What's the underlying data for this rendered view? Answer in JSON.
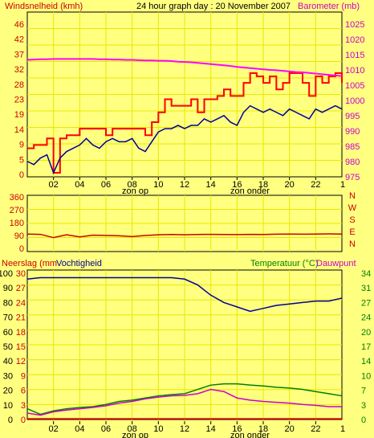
{
  "colors": {
    "background": "#ffff80",
    "axes": "#000000",
    "grid": "#e8e800",
    "wind_gust": "#ff0000",
    "wind_avg": "#000099",
    "barometer": "#ff00ff",
    "direction": "#cc0000",
    "humidity": "#000099",
    "rain": "#ff0000",
    "temperature": "#008000",
    "dewpoint": "#cc00cc",
    "label_red": "#cc0000",
    "label_magenta": "#cc00cc",
    "label_green": "#008000"
  },
  "header": {
    "title": "24 hour graph day : 20 November 2007"
  },
  "chart_data": [
    {
      "type": "line",
      "panel": "wind_barometer",
      "left_axis": {
        "label": "Windsnelheid (kmh)",
        "ticks": [
          "46",
          "42",
          "37",
          "32",
          "28",
          "23",
          "19",
          "14",
          "9",
          "5",
          "0"
        ],
        "ylim": [
          0,
          46
        ]
      },
      "right_axis": {
        "label": "Barometer (mb)",
        "ticks": [
          "1025",
          "1020",
          "1015",
          "1010",
          "1005",
          "1000",
          "995",
          "990",
          "985",
          "980",
          "975"
        ],
        "ylim": [
          975,
          1025
        ]
      },
      "x_ticks": [
        "02",
        "04",
        "06",
        "08",
        "10",
        "12",
        "14",
        "16",
        "18",
        "20",
        "22"
      ],
      "x_end_label": "1",
      "sun_labels": {
        "rise": "zon op",
        "set": "zon onder"
      },
      "x_hours": [
        0,
        0.5,
        1,
        1.5,
        2,
        2.5,
        3,
        3.5,
        4,
        4.5,
        5,
        5.5,
        6,
        6.5,
        7,
        7.5,
        8,
        8.5,
        9,
        9.5,
        10,
        10.5,
        11,
        11.5,
        12,
        12.5,
        13,
        13.5,
        14,
        14.5,
        15,
        15.5,
        16,
        16.5,
        17,
        17.5,
        18,
        18.5,
        19,
        19.5,
        20,
        20.5,
        21,
        21.5,
        22,
        22.5,
        23,
        23.5,
        24
      ],
      "series": [
        {
          "key": "gust",
          "axis": "left",
          "values": [
            8,
            9,
            9,
            11,
            0.5,
            11,
            12,
            12,
            14,
            14,
            14,
            14,
            12,
            14,
            14,
            14,
            14,
            14,
            12,
            16,
            19,
            23,
            21,
            21,
            21,
            23,
            19,
            23,
            23,
            24,
            26,
            24,
            24,
            28,
            31,
            30,
            28,
            30,
            26,
            28,
            31,
            31,
            28,
            24,
            30,
            28,
            30,
            31,
            28
          ]
        },
        {
          "key": "avg",
          "axis": "left",
          "values": [
            4,
            3,
            5,
            6,
            0.5,
            5,
            7,
            8,
            9,
            11,
            9,
            8,
            10,
            11,
            10,
            10,
            11,
            8,
            7,
            10,
            13,
            14,
            14,
            15,
            14,
            15,
            15,
            17,
            16,
            17,
            18,
            16,
            15,
            19,
            21,
            20,
            19,
            20,
            19,
            18,
            20,
            19,
            18,
            17,
            20,
            19,
            20,
            21,
            20
          ]
        },
        {
          "key": "barometer",
          "axis": "right",
          "values": [
            1013.3,
            1013.4,
            1013.5,
            1013.5,
            1013.6,
            1013.6,
            1013.6,
            1013.6,
            1013.6,
            1013.6,
            1013.6,
            1013.5,
            1013.5,
            1013.4,
            1013.4,
            1013.3,
            1013.3,
            1013.2,
            1013.1,
            1013.1,
            1013.0,
            1013.0,
            1012.9,
            1012.7,
            1012.6,
            1012.5,
            1012.3,
            1012.1,
            1011.9,
            1011.7,
            1011.5,
            1011.3,
            1011.0,
            1010.8,
            1010.6,
            1010.4,
            1010.2,
            1010.0,
            1009.9,
            1009.7,
            1009.5,
            1009.3,
            1009.2,
            1009.0,
            1008.8,
            1008.6,
            1008.4,
            1008.2,
            1008.0
          ]
        }
      ]
    },
    {
      "type": "line",
      "panel": "wind_direction",
      "left_axis": {
        "ticks": [
          "360",
          "270",
          "180",
          "90",
          "0"
        ],
        "ylim": [
          0,
          360
        ]
      },
      "right_labels": [
        "N",
        "W",
        "S",
        "E",
        "N"
      ],
      "x_hours": [
        0,
        1,
        2,
        3,
        4,
        5,
        6,
        7,
        8,
        9,
        10,
        11,
        12,
        13,
        14,
        15,
        16,
        17,
        18,
        19,
        20,
        21,
        22,
        23,
        24
      ],
      "series": [
        {
          "key": "direction",
          "values": [
            100,
            98,
            75,
            95,
            80,
            92,
            90,
            88,
            82,
            90,
            95,
            97,
            95,
            97,
            98,
            97,
            96,
            98,
            97,
            99,
            100,
            99,
            100,
            101,
            100
          ]
        }
      ]
    },
    {
      "type": "line",
      "panel": "rain_humidity_temperature",
      "left_axis": {
        "label_rain": "Neerslag (mm",
        "label_humidity": "Vochtigheid",
        "humidity_ticks": [
          "100",
          "90",
          "80",
          "70",
          "60",
          "50",
          "40",
          "30",
          "20",
          "10",
          "0"
        ],
        "humidity_ylim": [
          0,
          100
        ],
        "rain_ticks": [
          "30",
          "27",
          "24",
          "21",
          "18",
          "15",
          "12",
          "9",
          "6",
          "3",
          "0"
        ],
        "rain_ylim": [
          0,
          30
        ]
      },
      "right_axis": {
        "label_temp": "Temperatuur (°C)",
        "label_dew": "Dauwpunt",
        "ticks": [
          "34",
          "31",
          "27",
          "24",
          "20",
          "17",
          "14",
          "10",
          "7",
          "3",
          "0"
        ],
        "ylim": [
          0,
          34
        ]
      },
      "x_ticks": [
        "02",
        "04",
        "06",
        "08",
        "10",
        "12",
        "14",
        "16",
        "18",
        "20",
        "22"
      ],
      "x_end_label": "1",
      "sun_labels": {
        "rise": "zon op",
        "set": "zon onder"
      },
      "x_hours": [
        0,
        1,
        2,
        3,
        4,
        5,
        6,
        7,
        8,
        9,
        10,
        11,
        12,
        13,
        14,
        15,
        16,
        17,
        18,
        19,
        20,
        21,
        22,
        23,
        24
      ],
      "series": [
        {
          "key": "humidity",
          "axis": "humidity",
          "values": [
            96,
            97,
            97,
            97,
            97,
            97,
            97,
            97,
            97,
            97,
            97,
            97,
            96,
            92,
            85,
            80,
            77,
            74,
            76,
            78,
            79,
            80,
            81,
            81,
            83
          ]
        },
        {
          "key": "rain",
          "axis": "rain",
          "values": [
            0,
            0,
            0,
            0,
            0,
            0,
            0,
            0,
            0,
            0,
            0,
            0,
            0,
            0,
            0,
            0,
            0,
            0,
            0,
            0,
            0,
            0,
            0,
            0,
            0
          ]
        },
        {
          "key": "temperature",
          "axis": "right",
          "values": [
            2.5,
            1.2,
            2.0,
            2.5,
            2.8,
            3.0,
            3.5,
            4.2,
            4.5,
            5.0,
            5.5,
            5.8,
            6.0,
            7.0,
            8.0,
            8.3,
            8.3,
            8.0,
            7.8,
            7.5,
            7.3,
            7.0,
            6.5,
            6.0,
            5.5
          ]
        },
        {
          "key": "dewpoint",
          "axis": "right",
          "values": [
            1.5,
            1.0,
            1.8,
            2.2,
            2.5,
            2.8,
            3.2,
            3.8,
            4.2,
            4.8,
            5.2,
            5.5,
            5.6,
            6.0,
            7.0,
            6.5,
            5.0,
            4.5,
            4.2,
            4.0,
            3.8,
            3.5,
            3.3,
            3.0,
            3.0
          ]
        }
      ]
    }
  ]
}
